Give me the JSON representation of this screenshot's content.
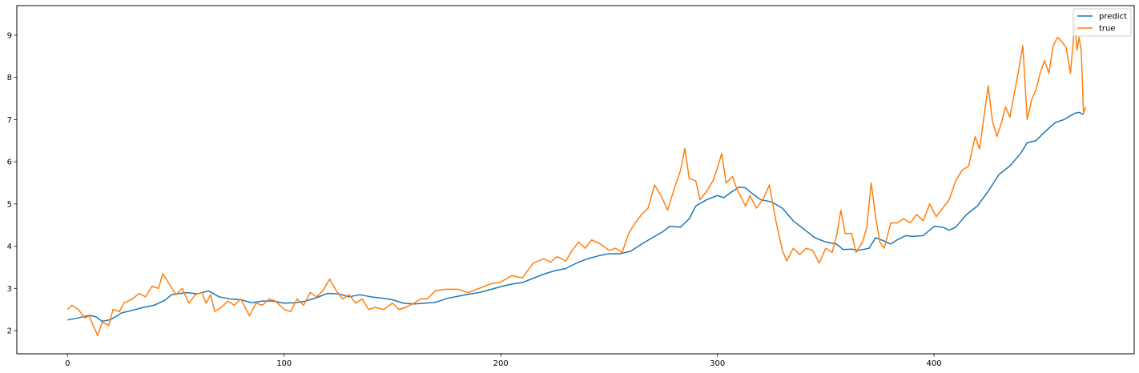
{
  "chart_data": {
    "type": "line",
    "title": "",
    "xlabel": "",
    "ylabel": "",
    "xlim": [
      -23.4,
      492.4
    ],
    "ylim": [
      1.45,
      9.7
    ],
    "xticks": [
      0,
      100,
      200,
      300,
      400
    ],
    "yticks": [
      2,
      3,
      4,
      5,
      6,
      7,
      8,
      9
    ],
    "grid": false,
    "legend_position": "top-right",
    "series": [
      {
        "name": "predict",
        "color": "#1f77b4",
        "points": [
          [
            0,
            2.25
          ],
          [
            5,
            2.3
          ],
          [
            10,
            2.36
          ],
          [
            13,
            2.33
          ],
          [
            16,
            2.22
          ],
          [
            20,
            2.26
          ],
          [
            25,
            2.42
          ],
          [
            30,
            2.48
          ],
          [
            35,
            2.55
          ],
          [
            40,
            2.6
          ],
          [
            45,
            2.72
          ],
          [
            48,
            2.85
          ],
          [
            55,
            2.9
          ],
          [
            60,
            2.87
          ],
          [
            65,
            2.94
          ],
          [
            70,
            2.8
          ],
          [
            75,
            2.75
          ],
          [
            80,
            2.73
          ],
          [
            85,
            2.66
          ],
          [
            90,
            2.7
          ],
          [
            95,
            2.7
          ],
          [
            100,
            2.65
          ],
          [
            105,
            2.66
          ],
          [
            110,
            2.7
          ],
          [
            115,
            2.78
          ],
          [
            120,
            2.88
          ],
          [
            125,
            2.87
          ],
          [
            130,
            2.8
          ],
          [
            135,
            2.85
          ],
          [
            140,
            2.8
          ],
          [
            145,
            2.77
          ],
          [
            150,
            2.73
          ],
          [
            155,
            2.65
          ],
          [
            160,
            2.63
          ],
          [
            165,
            2.65
          ],
          [
            170,
            2.67
          ],
          [
            175,
            2.76
          ],
          [
            180,
            2.81
          ],
          [
            185,
            2.86
          ],
          [
            190,
            2.9
          ],
          [
            195,
            2.97
          ],
          [
            200,
            3.04
          ],
          [
            205,
            3.1
          ],
          [
            210,
            3.14
          ],
          [
            215,
            3.24
          ],
          [
            220,
            3.34
          ],
          [
            225,
            3.42
          ],
          [
            230,
            3.47
          ],
          [
            235,
            3.6
          ],
          [
            240,
            3.7
          ],
          [
            245,
            3.77
          ],
          [
            250,
            3.82
          ],
          [
            255,
            3.82
          ],
          [
            260,
            3.88
          ],
          [
            265,
            4.05
          ],
          [
            270,
            4.2
          ],
          [
            275,
            4.35
          ],
          [
            278,
            4.47
          ],
          [
            283,
            4.45
          ],
          [
            287,
            4.65
          ],
          [
            290,
            4.95
          ],
          [
            295,
            5.1
          ],
          [
            300,
            5.2
          ],
          [
            303,
            5.15
          ],
          [
            307,
            5.3
          ],
          [
            310,
            5.4
          ],
          [
            313,
            5.38
          ],
          [
            316,
            5.25
          ],
          [
            320,
            5.1
          ],
          [
            325,
            5.05
          ],
          [
            330,
            4.9
          ],
          [
            335,
            4.6
          ],
          [
            340,
            4.4
          ],
          [
            345,
            4.2
          ],
          [
            350,
            4.1
          ],
          [
            355,
            4.05
          ],
          [
            358,
            3.92
          ],
          [
            362,
            3.93
          ],
          [
            365,
            3.9
          ],
          [
            370,
            3.95
          ],
          [
            373,
            4.2
          ],
          [
            377,
            4.12
          ],
          [
            380,
            4.05
          ],
          [
            383,
            4.15
          ],
          [
            387,
            4.25
          ],
          [
            390,
            4.23
          ],
          [
            395,
            4.25
          ],
          [
            400,
            4.47
          ],
          [
            404,
            4.45
          ],
          [
            407,
            4.38
          ],
          [
            410,
            4.45
          ],
          [
            415,
            4.75
          ],
          [
            420,
            4.95
          ],
          [
            425,
            5.3
          ],
          [
            430,
            5.7
          ],
          [
            435,
            5.9
          ],
          [
            440,
            6.2
          ],
          [
            443,
            6.45
          ],
          [
            447,
            6.5
          ],
          [
            452,
            6.75
          ],
          [
            456,
            6.93
          ],
          [
            460,
            7.0
          ],
          [
            465,
            7.15
          ],
          [
            467,
            7.17
          ],
          [
            469,
            7.12
          ]
        ]
      },
      {
        "name": "true",
        "color": "#ff7f0e",
        "points": [
          [
            0,
            2.5
          ],
          [
            2,
            2.6
          ],
          [
            5,
            2.5
          ],
          [
            8,
            2.3
          ],
          [
            10,
            2.35
          ],
          [
            12,
            2.1
          ],
          [
            14,
            1.88
          ],
          [
            16,
            2.2
          ],
          [
            19,
            2.12
          ],
          [
            21,
            2.5
          ],
          [
            24,
            2.45
          ],
          [
            26,
            2.65
          ],
          [
            30,
            2.75
          ],
          [
            33,
            2.88
          ],
          [
            36,
            2.8
          ],
          [
            39,
            3.05
          ],
          [
            42,
            3.0
          ],
          [
            44,
            3.35
          ],
          [
            47,
            3.1
          ],
          [
            50,
            2.85
          ],
          [
            53,
            3.0
          ],
          [
            56,
            2.65
          ],
          [
            59,
            2.85
          ],
          [
            62,
            2.9
          ],
          [
            64,
            2.65
          ],
          [
            66,
            2.85
          ],
          [
            68,
            2.45
          ],
          [
            71,
            2.55
          ],
          [
            74,
            2.7
          ],
          [
            77,
            2.6
          ],
          [
            80,
            2.75
          ],
          [
            82,
            2.55
          ],
          [
            84,
            2.35
          ],
          [
            87,
            2.65
          ],
          [
            90,
            2.6
          ],
          [
            93,
            2.75
          ],
          [
            96,
            2.7
          ],
          [
            100,
            2.5
          ],
          [
            103,
            2.45
          ],
          [
            106,
            2.75
          ],
          [
            109,
            2.6
          ],
          [
            112,
            2.9
          ],
          [
            115,
            2.8
          ],
          [
            118,
            2.95
          ],
          [
            121,
            3.22
          ],
          [
            124,
            2.95
          ],
          [
            127,
            2.75
          ],
          [
            130,
            2.85
          ],
          [
            133,
            2.65
          ],
          [
            136,
            2.75
          ],
          [
            139,
            2.5
          ],
          [
            142,
            2.55
          ],
          [
            146,
            2.5
          ],
          [
            150,
            2.65
          ],
          [
            153,
            2.5
          ],
          [
            156,
            2.55
          ],
          [
            160,
            2.65
          ],
          [
            163,
            2.75
          ],
          [
            166,
            2.75
          ],
          [
            170,
            2.95
          ],
          [
            175,
            2.98
          ],
          [
            180,
            2.98
          ],
          [
            185,
            2.9
          ],
          [
            190,
            3.0
          ],
          [
            195,
            3.1
          ],
          [
            200,
            3.15
          ],
          [
            205,
            3.3
          ],
          [
            210,
            3.25
          ],
          [
            215,
            3.6
          ],
          [
            220,
            3.7
          ],
          [
            223,
            3.62
          ],
          [
            226,
            3.75
          ],
          [
            230,
            3.65
          ],
          [
            233,
            3.9
          ],
          [
            236,
            4.1
          ],
          [
            239,
            3.95
          ],
          [
            242,
            4.15
          ],
          [
            246,
            4.05
          ],
          [
            250,
            3.9
          ],
          [
            253,
            3.95
          ],
          [
            256,
            3.85
          ],
          [
            259,
            4.3
          ],
          [
            262,
            4.55
          ],
          [
            265,
            4.75
          ],
          [
            268,
            4.9
          ],
          [
            271,
            5.45
          ],
          [
            274,
            5.2
          ],
          [
            277,
            4.85
          ],
          [
            280,
            5.35
          ],
          [
            283,
            5.8
          ],
          [
            285,
            6.32
          ],
          [
            287,
            5.6
          ],
          [
            290,
            5.55
          ],
          [
            292,
            5.1
          ],
          [
            295,
            5.3
          ],
          [
            298,
            5.55
          ],
          [
            300,
            5.85
          ],
          [
            302,
            6.2
          ],
          [
            304,
            5.5
          ],
          [
            307,
            5.65
          ],
          [
            309,
            5.35
          ],
          [
            311,
            5.15
          ],
          [
            313,
            4.95
          ],
          [
            315,
            5.2
          ],
          [
            318,
            4.9
          ],
          [
            321,
            5.1
          ],
          [
            324,
            5.45
          ],
          [
            327,
            4.6
          ],
          [
            330,
            3.9
          ],
          [
            332,
            3.65
          ],
          [
            335,
            3.95
          ],
          [
            338,
            3.8
          ],
          [
            341,
            3.95
          ],
          [
            344,
            3.9
          ],
          [
            347,
            3.6
          ],
          [
            350,
            3.95
          ],
          [
            353,
            3.85
          ],
          [
            355,
            4.25
          ],
          [
            357,
            4.85
          ],
          [
            359,
            4.3
          ],
          [
            362,
            4.3
          ],
          [
            364,
            3.85
          ],
          [
            367,
            4.1
          ],
          [
            369,
            4.45
          ],
          [
            371,
            5.5
          ],
          [
            373,
            4.7
          ],
          [
            375,
            4.1
          ],
          [
            377,
            3.95
          ],
          [
            380,
            4.55
          ],
          [
            383,
            4.55
          ],
          [
            386,
            4.65
          ],
          [
            389,
            4.55
          ],
          [
            392,
            4.75
          ],
          [
            395,
            4.6
          ],
          [
            398,
            5.0
          ],
          [
            401,
            4.7
          ],
          [
            404,
            4.9
          ],
          [
            407,
            5.1
          ],
          [
            410,
            5.55
          ],
          [
            413,
            5.8
          ],
          [
            416,
            5.9
          ],
          [
            419,
            6.6
          ],
          [
            421,
            6.3
          ],
          [
            423,
            7.05
          ],
          [
            425,
            7.8
          ],
          [
            427,
            6.95
          ],
          [
            429,
            6.6
          ],
          [
            431,
            6.9
          ],
          [
            433,
            7.3
          ],
          [
            435,
            7.05
          ],
          [
            437,
            7.6
          ],
          [
            439,
            8.15
          ],
          [
            441,
            8.75
          ],
          [
            443,
            7.0
          ],
          [
            445,
            7.45
          ],
          [
            447,
            7.7
          ],
          [
            449,
            8.1
          ],
          [
            451,
            8.4
          ],
          [
            453,
            8.1
          ],
          [
            455,
            8.75
          ],
          [
            457,
            8.95
          ],
          [
            459,
            8.85
          ],
          [
            461,
            8.7
          ],
          [
            463,
            8.1
          ],
          [
            464,
            8.7
          ],
          [
            465,
            9.3
          ],
          [
            466,
            8.65
          ],
          [
            467,
            8.95
          ],
          [
            468,
            8.6
          ],
          [
            469,
            7.15
          ],
          [
            470,
            7.3
          ]
        ]
      }
    ]
  }
}
